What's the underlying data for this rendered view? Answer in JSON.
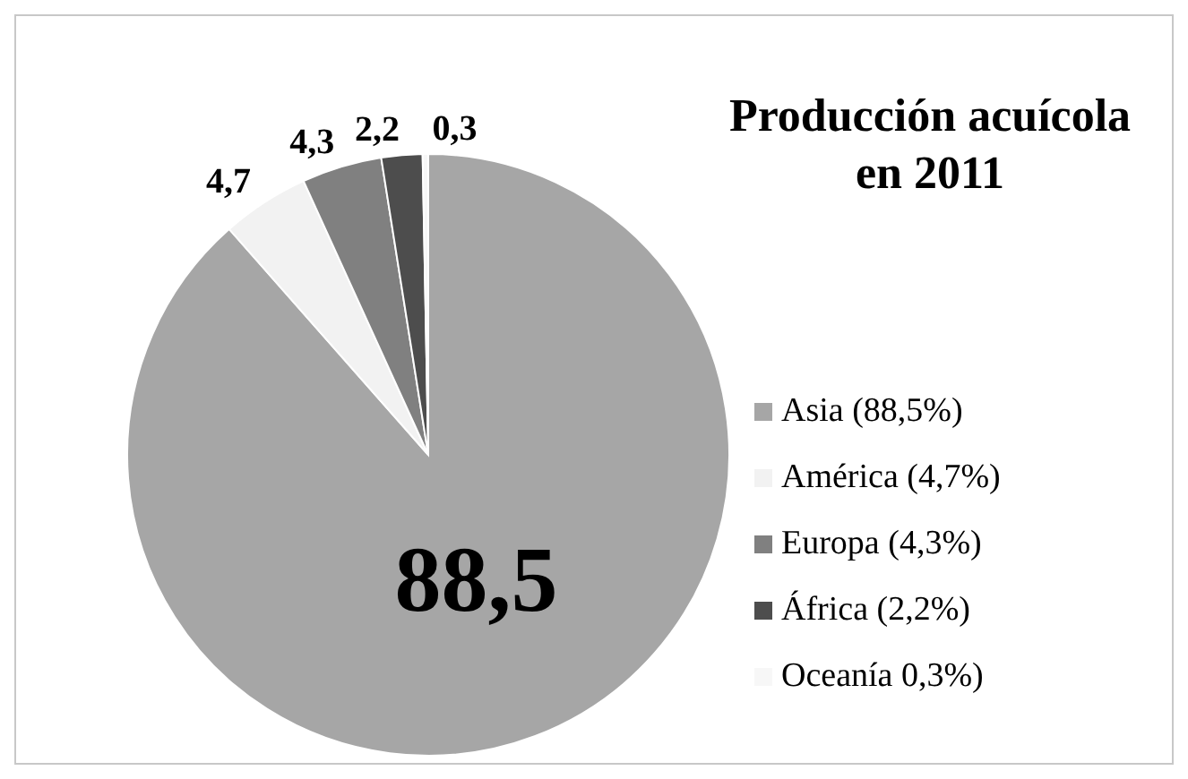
{
  "chart_data": {
    "type": "pie",
    "title": "Producción acuícola en 2011",
    "categories": [
      "Asia (88,5%)",
      "América (4,7%)",
      "Europa (4,3%)",
      "África (2,2%)",
      "Oceanía 0,3%)"
    ],
    "values": [
      88.5,
      4.7,
      4.3,
      2.2,
      0.3
    ],
    "value_labels": [
      "88,5",
      "4,7",
      "4,3",
      "2,2",
      "0,3"
    ],
    "colors": [
      "#a6a6a6",
      "#f2f2f2",
      "#808080",
      "#4d4d4d",
      "#f7f7f7"
    ],
    "legend": "right"
  }
}
